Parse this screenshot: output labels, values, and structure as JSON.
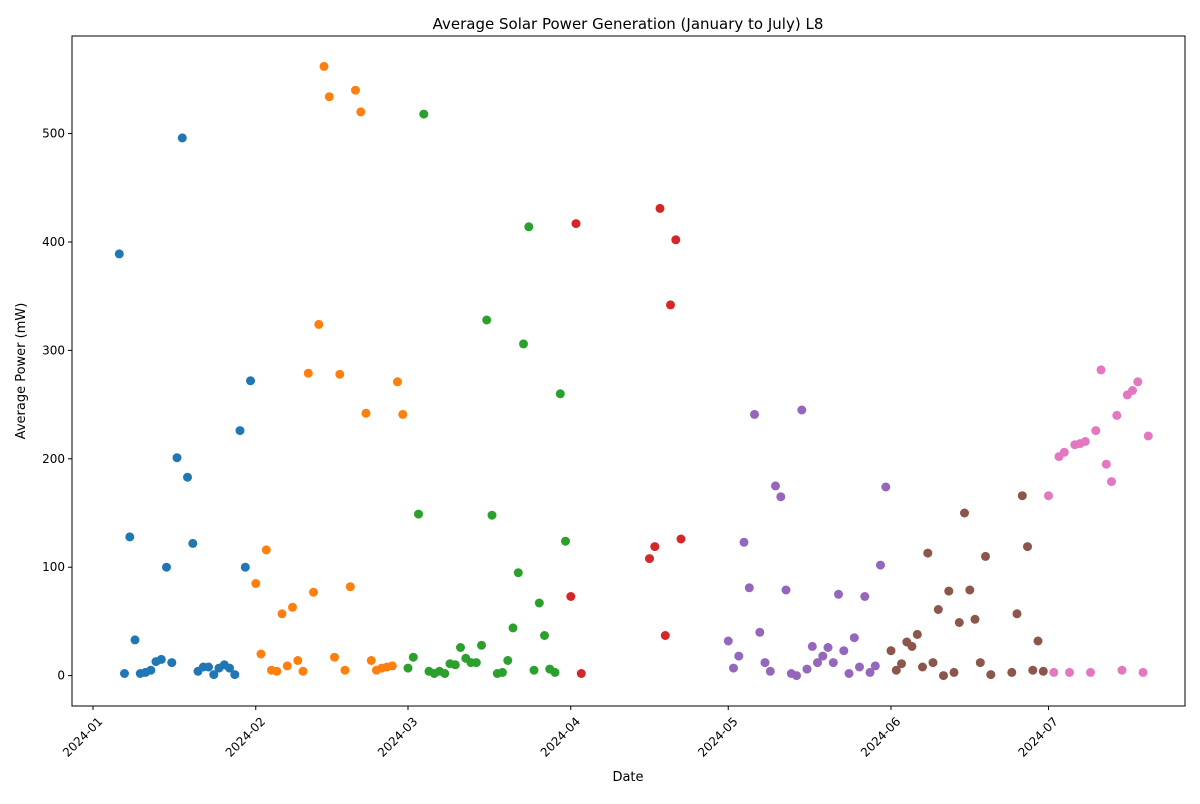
{
  "chart_data": {
    "type": "scatter",
    "title": "Average Solar Power Generation (January to July) L8",
    "xlabel": "Date",
    "ylabel": "Average Power (mW)",
    "xlim": [
      "2023-12-28",
      "2024-07-27"
    ],
    "ylim": [
      -28,
      590
    ],
    "grid": false,
    "x_ticks": [
      "2024-01",
      "2024-02",
      "2024-03",
      "2024-04",
      "2024-05",
      "2024-06",
      "2024-07"
    ],
    "y_ticks": [
      0,
      100,
      200,
      300,
      400,
      500
    ],
    "series": [
      {
        "color": "#1f77b4",
        "points": [
          [
            "2024-01-06",
            389
          ],
          [
            "2024-01-07",
            2
          ],
          [
            "2024-01-08",
            128
          ],
          [
            "2024-01-09",
            33
          ],
          [
            "2024-01-10",
            2
          ],
          [
            "2024-01-11",
            3
          ],
          [
            "2024-01-12",
            5
          ],
          [
            "2024-01-13",
            13
          ],
          [
            "2024-01-14",
            15
          ],
          [
            "2024-01-15",
            100
          ],
          [
            "2024-01-16",
            12
          ],
          [
            "2024-01-17",
            201
          ],
          [
            "2024-01-18",
            496
          ],
          [
            "2024-01-19",
            183
          ],
          [
            "2024-01-20",
            122
          ],
          [
            "2024-01-21",
            4
          ],
          [
            "2024-01-22",
            8
          ],
          [
            "2024-01-23",
            8
          ],
          [
            "2024-01-24",
            1
          ],
          [
            "2024-01-25",
            7
          ],
          [
            "2024-01-26",
            10
          ],
          [
            "2024-01-27",
            7
          ],
          [
            "2024-01-28",
            1
          ],
          [
            "2024-01-29",
            226
          ],
          [
            "2024-01-30",
            100
          ],
          [
            "2024-01-31",
            272
          ]
        ]
      },
      {
        "color": "#ff7f0e",
        "points": [
          [
            "2024-02-01",
            85
          ],
          [
            "2024-02-02",
            20
          ],
          [
            "2024-02-03",
            116
          ],
          [
            "2024-02-04",
            5
          ],
          [
            "2024-02-05",
            4
          ],
          [
            "2024-02-06",
            57
          ],
          [
            "2024-02-07",
            9
          ],
          [
            "2024-02-08",
            63
          ],
          [
            "2024-02-09",
            14
          ],
          [
            "2024-02-10",
            4
          ],
          [
            "2024-02-11",
            279
          ],
          [
            "2024-02-12",
            77
          ],
          [
            "2024-02-13",
            324
          ],
          [
            "2024-02-14",
            562
          ],
          [
            "2024-02-15",
            534
          ],
          [
            "2024-02-16",
            17
          ],
          [
            "2024-02-17",
            278
          ],
          [
            "2024-02-18",
            5
          ],
          [
            "2024-02-19",
            82
          ],
          [
            "2024-02-20",
            540
          ],
          [
            "2024-02-21",
            520
          ],
          [
            "2024-02-22",
            242
          ],
          [
            "2024-02-23",
            14
          ],
          [
            "2024-02-24",
            5
          ],
          [
            "2024-02-25",
            7
          ],
          [
            "2024-02-26",
            8
          ],
          [
            "2024-02-27",
            9
          ],
          [
            "2024-02-28",
            271
          ],
          [
            "2024-02-29",
            241
          ]
        ]
      },
      {
        "color": "#2ca02c",
        "points": [
          [
            "2024-03-01",
            7
          ],
          [
            "2024-03-02",
            17
          ],
          [
            "2024-03-03",
            149
          ],
          [
            "2024-03-04",
            518
          ],
          [
            "2024-03-05",
            4
          ],
          [
            "2024-03-06",
            2
          ],
          [
            "2024-03-07",
            4
          ],
          [
            "2024-03-08",
            2
          ],
          [
            "2024-03-09",
            11
          ],
          [
            "2024-03-10",
            10
          ],
          [
            "2024-03-11",
            26
          ],
          [
            "2024-03-12",
            16
          ],
          [
            "2024-03-13",
            12
          ],
          [
            "2024-03-14",
            12
          ],
          [
            "2024-03-15",
            28
          ],
          [
            "2024-03-16",
            328
          ],
          [
            "2024-03-17",
            148
          ],
          [
            "2024-03-18",
            2
          ],
          [
            "2024-03-19",
            3
          ],
          [
            "2024-03-20",
            14
          ],
          [
            "2024-03-21",
            44
          ],
          [
            "2024-03-22",
            95
          ],
          [
            "2024-03-23",
            306
          ],
          [
            "2024-03-24",
            414
          ],
          [
            "2024-03-25",
            5
          ],
          [
            "2024-03-26",
            67
          ],
          [
            "2024-03-27",
            37
          ],
          [
            "2024-03-28",
            6
          ],
          [
            "2024-03-29",
            3
          ],
          [
            "2024-03-30",
            260
          ],
          [
            "2024-03-31",
            124
          ]
        ]
      },
      {
        "color": "#d62728",
        "points": [
          [
            "2024-04-01",
            73
          ],
          [
            "2024-04-02",
            417
          ],
          [
            "2024-04-03",
            2
          ],
          [
            "2024-04-16",
            108
          ],
          [
            "2024-04-17",
            119
          ],
          [
            "2024-04-18",
            431
          ],
          [
            "2024-04-19",
            37
          ],
          [
            "2024-04-20",
            342
          ],
          [
            "2024-04-21",
            402
          ],
          [
            "2024-04-22",
            126
          ]
        ]
      },
      {
        "color": "#9467bd",
        "points": [
          [
            "2024-05-01",
            32
          ],
          [
            "2024-05-02",
            7
          ],
          [
            "2024-05-03",
            18
          ],
          [
            "2024-05-04",
            123
          ],
          [
            "2024-05-05",
            81
          ],
          [
            "2024-05-06",
            241
          ],
          [
            "2024-05-07",
            40
          ],
          [
            "2024-05-08",
            12
          ],
          [
            "2024-05-09",
            4
          ],
          [
            "2024-05-10",
            175
          ],
          [
            "2024-05-11",
            165
          ],
          [
            "2024-05-12",
            79
          ],
          [
            "2024-05-13",
            2
          ],
          [
            "2024-05-14",
            0
          ],
          [
            "2024-05-15",
            245
          ],
          [
            "2024-05-16",
            6
          ],
          [
            "2024-05-17",
            27
          ],
          [
            "2024-05-18",
            12
          ],
          [
            "2024-05-19",
            18
          ],
          [
            "2024-05-20",
            26
          ],
          [
            "2024-05-21",
            12
          ],
          [
            "2024-05-22",
            75
          ],
          [
            "2024-05-23",
            23
          ],
          [
            "2024-05-24",
            2
          ],
          [
            "2024-05-25",
            35
          ],
          [
            "2024-05-26",
            8
          ],
          [
            "2024-05-27",
            73
          ],
          [
            "2024-05-28",
            3
          ],
          [
            "2024-05-29",
            9
          ],
          [
            "2024-05-30",
            102
          ],
          [
            "2024-05-31",
            174
          ]
        ]
      },
      {
        "color": "#8c564b",
        "points": [
          [
            "2024-06-01",
            23
          ],
          [
            "2024-06-02",
            5
          ],
          [
            "2024-06-03",
            11
          ],
          [
            "2024-06-04",
            31
          ],
          [
            "2024-06-05",
            27
          ],
          [
            "2024-06-06",
            38
          ],
          [
            "2024-06-07",
            8
          ],
          [
            "2024-06-08",
            113
          ],
          [
            "2024-06-09",
            12
          ],
          [
            "2024-06-10",
            61
          ],
          [
            "2024-06-11",
            0
          ],
          [
            "2024-06-12",
            78
          ],
          [
            "2024-06-13",
            3
          ],
          [
            "2024-06-14",
            49
          ],
          [
            "2024-06-15",
            150
          ],
          [
            "2024-06-16",
            79
          ],
          [
            "2024-06-17",
            52
          ],
          [
            "2024-06-18",
            12
          ],
          [
            "2024-06-19",
            110
          ],
          [
            "2024-06-20",
            1
          ],
          [
            "2024-06-24",
            3
          ],
          [
            "2024-06-25",
            57
          ],
          [
            "2024-06-26",
            166
          ],
          [
            "2024-06-27",
            119
          ],
          [
            "2024-06-28",
            5
          ],
          [
            "2024-06-29",
            32
          ],
          [
            "2024-06-30",
            4
          ]
        ]
      },
      {
        "color": "#e377c2",
        "points": [
          [
            "2024-07-01",
            166
          ],
          [
            "2024-07-02",
            3
          ],
          [
            "2024-07-03",
            202
          ],
          [
            "2024-07-04",
            206
          ],
          [
            "2024-07-05",
            3
          ],
          [
            "2024-07-06",
            213
          ],
          [
            "2024-07-07",
            214
          ],
          [
            "2024-07-08",
            216
          ],
          [
            "2024-07-09",
            3
          ],
          [
            "2024-07-10",
            226
          ],
          [
            "2024-07-11",
            282
          ],
          [
            "2024-07-12",
            195
          ],
          [
            "2024-07-13",
            179
          ],
          [
            "2024-07-14",
            240
          ],
          [
            "2024-07-15",
            5
          ],
          [
            "2024-07-16",
            259
          ],
          [
            "2024-07-17",
            263
          ],
          [
            "2024-07-18",
            271
          ],
          [
            "2024-07-19",
            3
          ],
          [
            "2024-07-20",
            221
          ]
        ]
      }
    ]
  }
}
